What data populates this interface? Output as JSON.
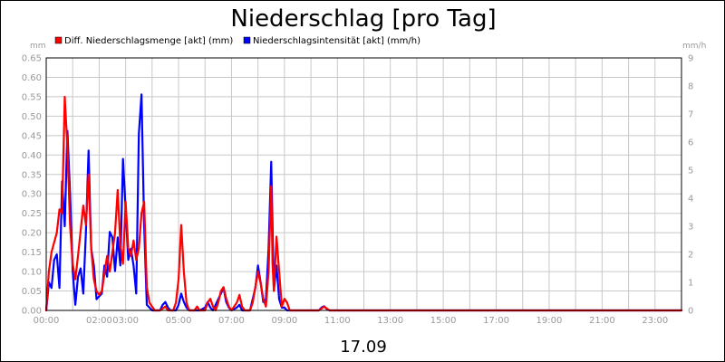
{
  "chart_data": {
    "type": "line",
    "title": "Niederschlag [pro Tag]",
    "xlabel": "17.09",
    "ylabel_left": "mm",
    "ylabel_right": "mm/h",
    "x_range_hours": [
      0,
      24
    ],
    "ylim_left": [
      0,
      0.65
    ],
    "ylim_right": [
      0,
      9
    ],
    "grid": true,
    "legend_position": "top-left",
    "x_tick_labels": [
      {
        "hour": 0,
        "label": "00:00"
      },
      {
        "hour": 2,
        "label": "02:00"
      },
      {
        "hour": 3,
        "label": "03:00"
      },
      {
        "hour": 5,
        "label": "05:00"
      },
      {
        "hour": 7,
        "label": "07:00"
      },
      {
        "hour": 9,
        "label": "09:00"
      },
      {
        "hour": 11,
        "label": "11:00"
      },
      {
        "hour": 13,
        "label": "13:00"
      },
      {
        "hour": 15,
        "label": "15:00"
      },
      {
        "hour": 17,
        "label": "17:00"
      },
      {
        "hour": 19,
        "label": "19:00"
      },
      {
        "hour": 21,
        "label": "21:00"
      },
      {
        "hour": 23,
        "label": "23:00"
      }
    ],
    "y_left_ticks": [
      "0.00",
      "0.05",
      "0.10",
      "0.15",
      "0.20",
      "0.25",
      "0.30",
      "0.35",
      "0.40",
      "0.45",
      "0.50",
      "0.55",
      "0.60",
      "0.65"
    ],
    "y_right_ticks": [
      "0",
      "1",
      "2",
      "3",
      "4",
      "5",
      "6",
      "7",
      "8",
      "9"
    ],
    "series": [
      {
        "name": "Diff. Niederschlagsmenge [akt] (mm)",
        "color": "#ff0000",
        "axis": "left",
        "points": [
          [
            0.0,
            0.0
          ],
          [
            0.1,
            0.1
          ],
          [
            0.2,
            0.15
          ],
          [
            0.4,
            0.2
          ],
          [
            0.5,
            0.26
          ],
          [
            0.6,
            0.25
          ],
          [
            0.7,
            0.55
          ],
          [
            0.8,
            0.42
          ],
          [
            0.9,
            0.22
          ],
          [
            1.0,
            0.12
          ],
          [
            1.1,
            0.08
          ],
          [
            1.2,
            0.14
          ],
          [
            1.4,
            0.27
          ],
          [
            1.5,
            0.22
          ],
          [
            1.6,
            0.35
          ],
          [
            1.7,
            0.16
          ],
          [
            1.8,
            0.08
          ],
          [
            1.9,
            0.05
          ],
          [
            2.0,
            0.04
          ],
          [
            2.1,
            0.05
          ],
          [
            2.3,
            0.14
          ],
          [
            2.4,
            0.1
          ],
          [
            2.6,
            0.2
          ],
          [
            2.7,
            0.31
          ],
          [
            2.8,
            0.17
          ],
          [
            2.9,
            0.12
          ],
          [
            3.0,
            0.28
          ],
          [
            3.1,
            0.16
          ],
          [
            3.2,
            0.14
          ],
          [
            3.3,
            0.18
          ],
          [
            3.4,
            0.13
          ],
          [
            3.5,
            0.16
          ],
          [
            3.6,
            0.25
          ],
          [
            3.7,
            0.28
          ],
          [
            3.8,
            0.06
          ],
          [
            3.9,
            0.02
          ],
          [
            4.0,
            0.01
          ],
          [
            4.1,
            0.0
          ],
          [
            4.3,
            0.0
          ],
          [
            4.5,
            0.01
          ],
          [
            4.6,
            0.0
          ],
          [
            4.8,
            0.0
          ],
          [
            4.9,
            0.02
          ],
          [
            5.0,
            0.08
          ],
          [
            5.1,
            0.22
          ],
          [
            5.2,
            0.1
          ],
          [
            5.3,
            0.02
          ],
          [
            5.4,
            0.0
          ],
          [
            5.6,
            0.0
          ],
          [
            5.7,
            0.01
          ],
          [
            5.8,
            0.0
          ],
          [
            6.0,
            0.0
          ],
          [
            6.1,
            0.02
          ],
          [
            6.2,
            0.03
          ],
          [
            6.3,
            0.01
          ],
          [
            6.4,
            0.0
          ],
          [
            6.5,
            0.02
          ],
          [
            6.6,
            0.05
          ],
          [
            6.7,
            0.06
          ],
          [
            6.8,
            0.03
          ],
          [
            6.9,
            0.01
          ],
          [
            7.0,
            0.0
          ],
          [
            7.2,
            0.02
          ],
          [
            7.3,
            0.04
          ],
          [
            7.4,
            0.01
          ],
          [
            7.5,
            0.0
          ],
          [
            7.7,
            0.0
          ],
          [
            7.8,
            0.02
          ],
          [
            7.9,
            0.06
          ],
          [
            8.0,
            0.1
          ],
          [
            8.1,
            0.07
          ],
          [
            8.2,
            0.03
          ],
          [
            8.3,
            0.01
          ],
          [
            8.4,
            0.1
          ],
          [
            8.5,
            0.32
          ],
          [
            8.55,
            0.12
          ],
          [
            8.6,
            0.05
          ],
          [
            8.7,
            0.19
          ],
          [
            8.8,
            0.1
          ],
          [
            8.9,
            0.01
          ],
          [
            9.0,
            0.03
          ],
          [
            9.1,
            0.02
          ],
          [
            9.2,
            0.0
          ],
          [
            9.5,
            0.0
          ],
          [
            10.0,
            0.0
          ],
          [
            10.3,
            0.0
          ],
          [
            10.4,
            0.005
          ],
          [
            10.5,
            0.01
          ],
          [
            10.6,
            0.005
          ],
          [
            10.7,
            0.0
          ],
          [
            24.0,
            0.0
          ]
        ]
      },
      {
        "name": "Niederschlagsintensität [akt] (mm/h)",
        "color": "#0000ff",
        "axis": "right",
        "points": [
          [
            0.0,
            0.0
          ],
          [
            0.1,
            1.0
          ],
          [
            0.2,
            0.8
          ],
          [
            0.3,
            1.8
          ],
          [
            0.4,
            2.0
          ],
          [
            0.5,
            0.8
          ],
          [
            0.6,
            4.6
          ],
          [
            0.7,
            3.0
          ],
          [
            0.8,
            6.4
          ],
          [
            0.9,
            4.2
          ],
          [
            1.0,
            1.4
          ],
          [
            1.1,
            0.2
          ],
          [
            1.2,
            1.2
          ],
          [
            1.3,
            1.5
          ],
          [
            1.4,
            0.6
          ],
          [
            1.5,
            2.8
          ],
          [
            1.6,
            5.7
          ],
          [
            1.7,
            2.2
          ],
          [
            1.8,
            1.6
          ],
          [
            1.9,
            0.4
          ],
          [
            2.0,
            0.5
          ],
          [
            2.1,
            0.6
          ],
          [
            2.2,
            1.6
          ],
          [
            2.3,
            1.2
          ],
          [
            2.4,
            2.8
          ],
          [
            2.5,
            2.6
          ],
          [
            2.6,
            1.4
          ],
          [
            2.7,
            2.6
          ],
          [
            2.8,
            1.6
          ],
          [
            2.9,
            5.4
          ],
          [
            3.0,
            3.6
          ],
          [
            3.1,
            1.8
          ],
          [
            3.2,
            2.2
          ],
          [
            3.3,
            1.6
          ],
          [
            3.4,
            0.6
          ],
          [
            3.5,
            6.3
          ],
          [
            3.6,
            7.7
          ],
          [
            3.7,
            3.0
          ],
          [
            3.8,
            0.2
          ],
          [
            3.9,
            0.1
          ],
          [
            4.0,
            0.0
          ],
          [
            4.3,
            0.0
          ],
          [
            4.4,
            0.2
          ],
          [
            4.5,
            0.3
          ],
          [
            4.6,
            0.1
          ],
          [
            4.7,
            0.0
          ],
          [
            4.9,
            0.0
          ],
          [
            5.0,
            0.2
          ],
          [
            5.1,
            0.6
          ],
          [
            5.2,
            0.3
          ],
          [
            5.3,
            0.1
          ],
          [
            5.4,
            0.0
          ],
          [
            5.8,
            0.0
          ],
          [
            6.0,
            0.1
          ],
          [
            6.1,
            0.3
          ],
          [
            6.2,
            0.1
          ],
          [
            6.3,
            0.0
          ],
          [
            6.5,
            0.4
          ],
          [
            6.6,
            0.6
          ],
          [
            6.7,
            0.8
          ],
          [
            6.8,
            0.3
          ],
          [
            6.9,
            0.1
          ],
          [
            7.0,
            0.0
          ],
          [
            7.2,
            0.1
          ],
          [
            7.3,
            0.2
          ],
          [
            7.4,
            0.0
          ],
          [
            7.7,
            0.0
          ],
          [
            7.8,
            0.4
          ],
          [
            7.9,
            0.8
          ],
          [
            8.0,
            1.6
          ],
          [
            8.1,
            1.0
          ],
          [
            8.2,
            0.3
          ],
          [
            8.3,
            0.4
          ],
          [
            8.4,
            2.2
          ],
          [
            8.5,
            5.3
          ],
          [
            8.6,
            0.7
          ],
          [
            8.7,
            1.6
          ],
          [
            8.8,
            0.4
          ],
          [
            8.9,
            0.1
          ],
          [
            9.0,
            0.1
          ],
          [
            9.1,
            0.0
          ],
          [
            10.3,
            0.0
          ],
          [
            10.4,
            0.1
          ],
          [
            10.5,
            0.15
          ],
          [
            10.6,
            0.05
          ],
          [
            10.7,
            0.0
          ],
          [
            24.0,
            0.0
          ]
        ]
      }
    ]
  }
}
